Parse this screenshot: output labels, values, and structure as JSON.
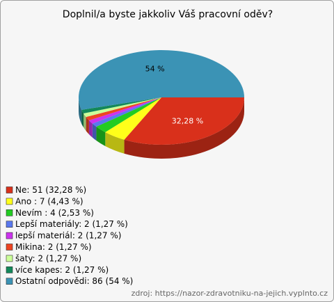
{
  "chart_data": {
    "type": "pie",
    "title": "Doplnil/a byste jakkoliv Váš pracovní oděv?",
    "categories": [
      "Ne: 51 (32,28 %)",
      "Ano : 7 (4,43 %)",
      "Nevím : 4 (2,53 %)",
      "Lepší materiály: 2 (1,27 %)",
      "lepší materiál: 2 (1,27 %)",
      "Mikina: 2 (1,27 %)",
      "šaty: 2 (1,27 %)",
      "více kapes: 2 (1,27 %)",
      "Ostatní odpovědi: 86 (54 %)"
    ],
    "values": [
      32.28,
      4.43,
      2.53,
      1.27,
      1.27,
      1.27,
      1.27,
      1.27,
      54
    ],
    "value_labels": [
      "32,28 %",
      null,
      null,
      null,
      null,
      null,
      null,
      null,
      "54 %"
    ],
    "colors": [
      "#d9301b",
      "#ffff1a",
      "#22cc22",
      "#5a78ee",
      "#cc33ee",
      "#ee4422",
      "#ccff99",
      "#13885a",
      "#3b93b5"
    ],
    "source": "zdroj: https://nazor-zdravotniku-na-jejich.vyplnto.cz"
  }
}
